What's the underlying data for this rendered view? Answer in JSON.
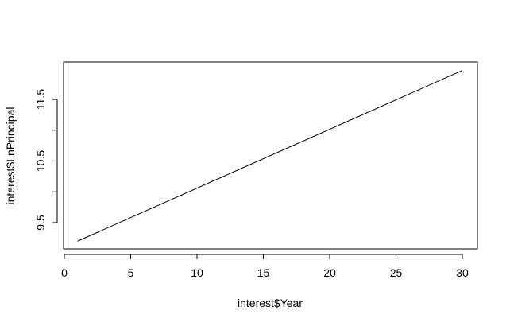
{
  "chart_data": {
    "type": "line",
    "xlabel": "interest$Year",
    "ylabel": "interest$LnPrincipal",
    "xlim": [
      0,
      30
    ],
    "ylim": [
      9.5,
      11.5
    ],
    "x_ticks": [
      0,
      5,
      10,
      15,
      20,
      25,
      30
    ],
    "y_ticks": [
      9.5,
      10.5,
      11.5
    ],
    "y_minor_ticks": [
      9.5,
      10,
      10.5,
      11,
      11.5
    ],
    "grid": false,
    "line_color": "#000000",
    "series": [
      {
        "x": [
          1,
          30
        ],
        "y": [
          9.2,
          11.97
        ]
      }
    ]
  }
}
